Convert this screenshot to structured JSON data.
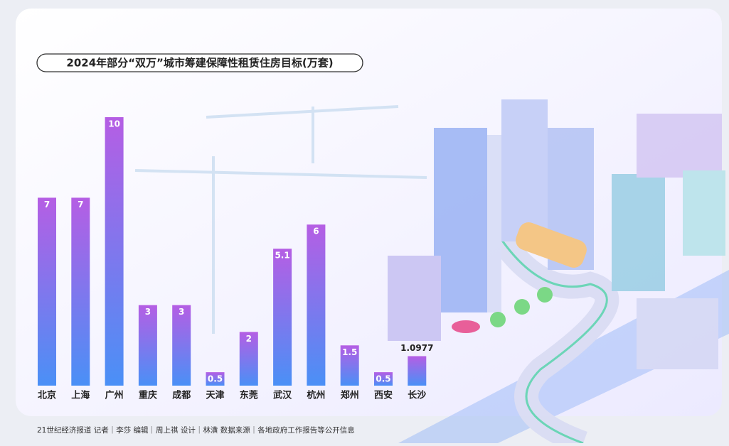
{
  "chart_data": {
    "type": "bar",
    "title": "2024年部分“双万”城市筹建保障性租赁住房目标(万套)",
    "categories": [
      "北京",
      "上海",
      "广州",
      "重庆",
      "成都",
      "天津",
      "东莞",
      "武汉",
      "杭州",
      "郑州",
      "西安",
      "长沙"
    ],
    "values": [
      7,
      7,
      10,
      3,
      3,
      0.5,
      2,
      5.1,
      6,
      1.5,
      0.5,
      1.0977
    ],
    "gradient_colors": [
      "#b55ee4",
      "#4a90f6"
    ],
    "footer": "21世纪经济报道  记者｜李莎    编辑｜周上祺    设计｜林潢    数据来源｜各地政府工作报告等公开信息"
  }
}
